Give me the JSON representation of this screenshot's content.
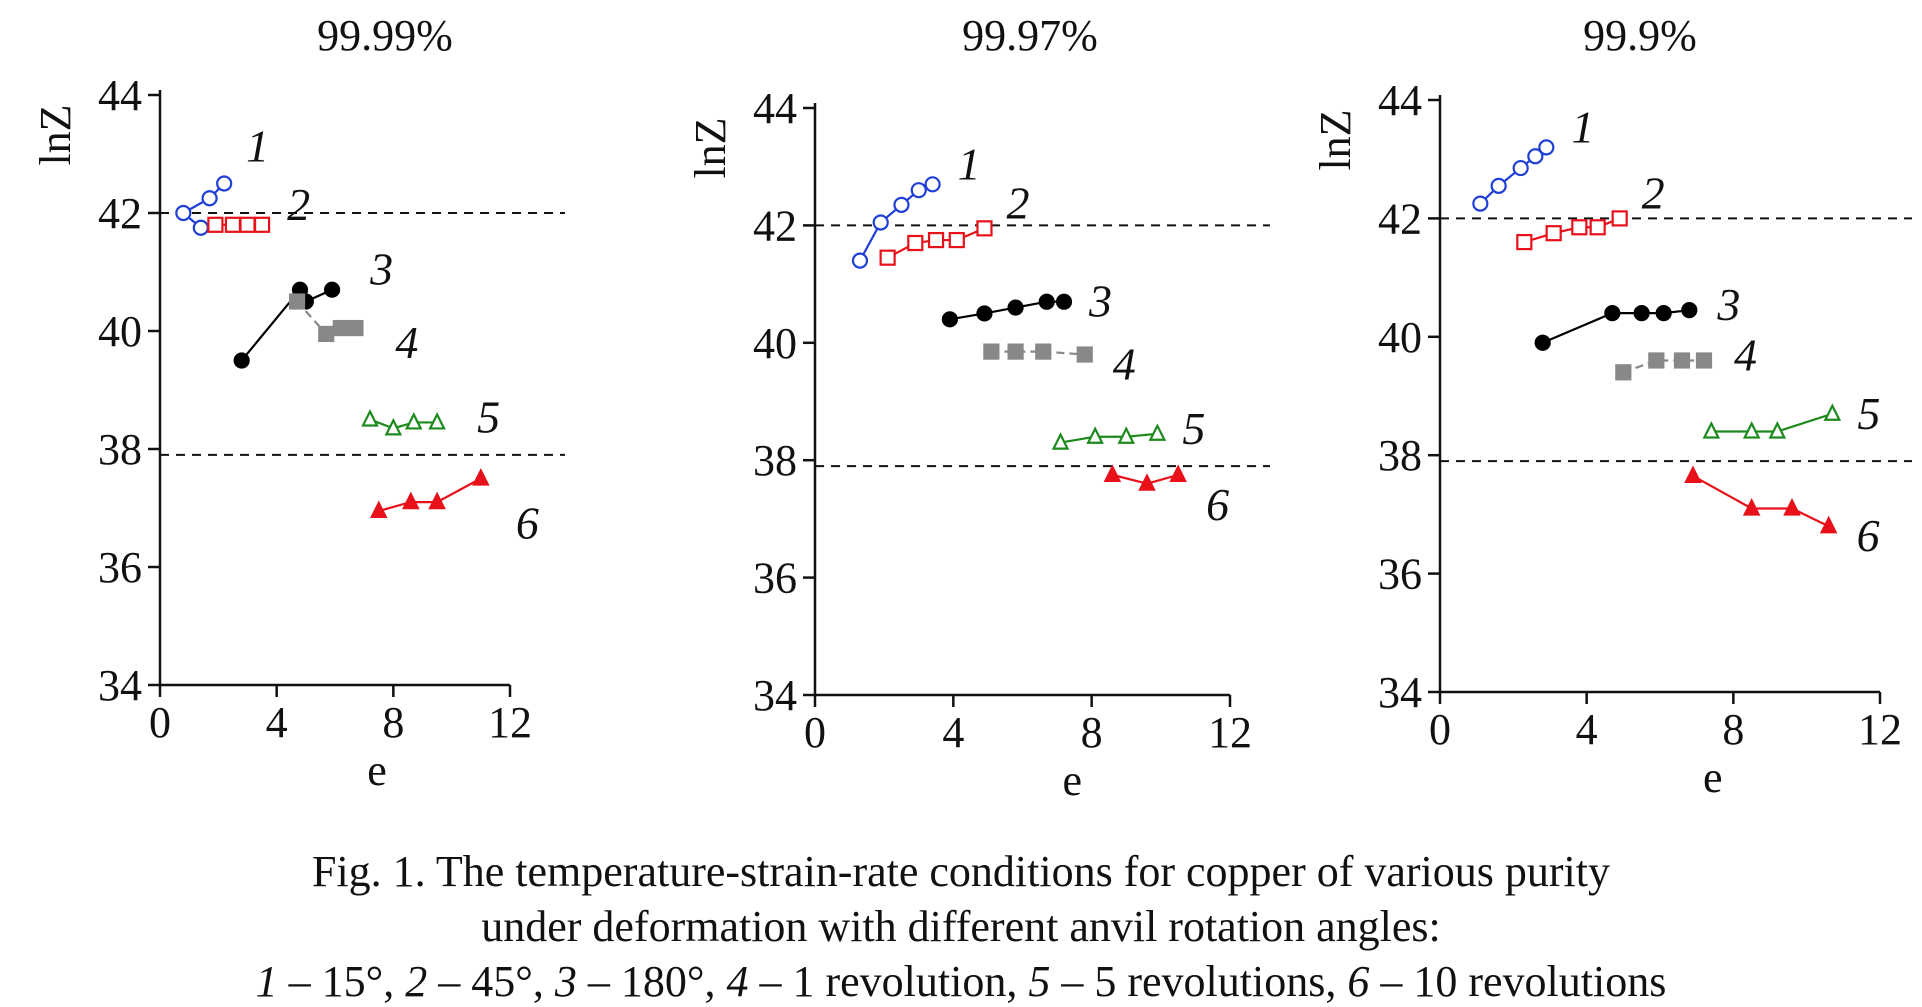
{
  "chart_data": [
    {
      "type": "line",
      "title": "99.99%",
      "xlabel": "e",
      "ylabel": "lnZ",
      "xlim": [
        0,
        12
      ],
      "ylim": [
        34,
        44
      ],
      "x_ticks": [
        "0",
        "4",
        "8",
        "12"
      ],
      "y_ticks": [
        "34",
        "36",
        "38",
        "40",
        "42",
        "44"
      ],
      "reference_lines": [
        42,
        37.9
      ],
      "grid": false,
      "series": [
        {
          "name": "1",
          "color": "#1f3fd6",
          "marker": "open-circle",
          "x": [
            0.8,
            1.7,
            2.2
          ],
          "y": [
            42.0,
            42.25,
            42.5
          ],
          "x2": [
            0.8,
            1.4
          ],
          "y2": [
            42.0,
            41.75
          ]
        },
        {
          "name": "2",
          "color": "#e8111a",
          "marker": "open-square",
          "x": [
            1.9,
            2.5,
            3.0,
            3.5
          ],
          "y": [
            41.8,
            41.8,
            41.8,
            41.8
          ]
        },
        {
          "name": "3",
          "color": "#000000",
          "marker": "filled-circle",
          "x": [
            2.8,
            4.8,
            5.0,
            5.9
          ],
          "y": [
            39.5,
            40.7,
            40.5,
            40.7
          ]
        },
        {
          "name": "4",
          "color": "#888888",
          "marker": "filled-square",
          "x": [
            4.7,
            5.7,
            6.2,
            6.7
          ],
          "y": [
            40.5,
            39.95,
            40.05,
            40.05
          ]
        },
        {
          "name": "5",
          "color": "#1c8a1c",
          "marker": "open-triangle",
          "x": [
            7.2,
            8.0,
            8.7,
            9.5
          ],
          "y": [
            38.5,
            38.35,
            38.45,
            38.45
          ]
        },
        {
          "name": "6",
          "color": "#e8111a",
          "marker": "filled-triangle",
          "x": [
            7.5,
            8.6,
            9.5,
            11.0
          ],
          "y": [
            36.95,
            37.1,
            37.1,
            37.5
          ]
        }
      ]
    },
    {
      "type": "line",
      "title": "99.97%",
      "xlabel": "e",
      "ylabel": "lnZ",
      "xlim": [
        0,
        12
      ],
      "ylim": [
        34,
        44
      ],
      "x_ticks": [
        "0",
        "4",
        "8",
        "12"
      ],
      "y_ticks": [
        "34",
        "36",
        "38",
        "40",
        "42",
        "44"
      ],
      "reference_lines": [
        42,
        37.9
      ],
      "grid": false,
      "series": [
        {
          "name": "1",
          "color": "#1f3fd6",
          "marker": "open-circle",
          "x": [
            1.3,
            1.9,
            2.5,
            3.0,
            3.4
          ],
          "y": [
            41.4,
            42.05,
            42.35,
            42.6,
            42.7
          ]
        },
        {
          "name": "2",
          "color": "#e8111a",
          "marker": "open-square",
          "x": [
            2.1,
            2.9,
            3.5,
            4.1,
            4.9
          ],
          "y": [
            41.45,
            41.7,
            41.75,
            41.75,
            41.95
          ]
        },
        {
          "name": "3",
          "color": "#000000",
          "marker": "filled-circle",
          "x": [
            3.9,
            4.9,
            5.8,
            6.7,
            7.2
          ],
          "y": [
            40.4,
            40.5,
            40.6,
            40.7,
            40.7
          ]
        },
        {
          "name": "4",
          "color": "#888888",
          "marker": "filled-square",
          "x": [
            5.1,
            5.8,
            6.6,
            7.8
          ],
          "y": [
            39.85,
            39.85,
            39.85,
            39.8
          ]
        },
        {
          "name": "5",
          "color": "#1c8a1c",
          "marker": "open-triangle",
          "x": [
            7.1,
            8.1,
            9.0,
            9.9
          ],
          "y": [
            38.3,
            38.4,
            38.4,
            38.45
          ]
        },
        {
          "name": "6",
          "color": "#e8111a",
          "marker": "filled-triangle",
          "x": [
            8.6,
            9.6,
            10.5
          ],
          "y": [
            37.75,
            37.6,
            37.75
          ]
        }
      ]
    },
    {
      "type": "line",
      "title": "99.9%",
      "xlabel": "e",
      "ylabel": "lnZ",
      "xlim": [
        0,
        12
      ],
      "ylim": [
        34,
        44
      ],
      "x_ticks": [
        "0",
        "4",
        "8",
        "12"
      ],
      "y_ticks": [
        "34",
        "36",
        "38",
        "40",
        "42",
        "44"
      ],
      "reference_lines": [
        42,
        37.9
      ],
      "grid": false,
      "series": [
        {
          "name": "1",
          "color": "#1f3fd6",
          "marker": "open-circle",
          "x": [
            1.1,
            1.6,
            2.2,
            2.6,
            2.9
          ],
          "y": [
            42.25,
            42.55,
            42.85,
            43.05,
            43.2
          ]
        },
        {
          "name": "2",
          "color": "#e8111a",
          "marker": "open-square",
          "x": [
            2.3,
            3.1,
            3.8,
            4.3,
            4.9
          ],
          "y": [
            41.6,
            41.75,
            41.85,
            41.85,
            42.0
          ]
        },
        {
          "name": "3",
          "color": "#000000",
          "marker": "filled-circle",
          "x": [
            2.8,
            4.7,
            5.5,
            6.1,
            6.8
          ],
          "y": [
            39.9,
            40.4,
            40.4,
            40.4,
            40.45
          ]
        },
        {
          "name": "4",
          "color": "#888888",
          "marker": "filled-square",
          "x": [
            5.0,
            5.9,
            6.6,
            7.2
          ],
          "y": [
            39.4,
            39.6,
            39.6,
            39.6
          ]
        },
        {
          "name": "5",
          "color": "#1c8a1c",
          "marker": "open-triangle",
          "x": [
            7.4,
            8.5,
            9.2,
            10.7
          ],
          "y": [
            38.4,
            38.4,
            38.4,
            38.7
          ]
        },
        {
          "name": "6",
          "color": "#e8111a",
          "marker": "filled-triangle",
          "x": [
            6.9,
            8.5,
            9.6,
            10.6
          ],
          "y": [
            37.65,
            37.1,
            37.1,
            36.8
          ]
        }
      ]
    }
  ],
  "caption": {
    "line1": "Fig. 1. The temperature-strain-rate conditions for copper of various purity",
    "line2": "under deformation with different anvil rotation angles:",
    "line3": [
      {
        "num": "1",
        "text": " – 15°, "
      },
      {
        "num": "2",
        "text": " – 45°, "
      },
      {
        "num": "3",
        "text": " – 180°, "
      },
      {
        "num": "4",
        "text": " – 1 revolution, "
      },
      {
        "num": "5",
        "text": " – 5 revolutions, "
      },
      {
        "num": "6",
        "text": " – 10 revolutions"
      }
    ]
  }
}
